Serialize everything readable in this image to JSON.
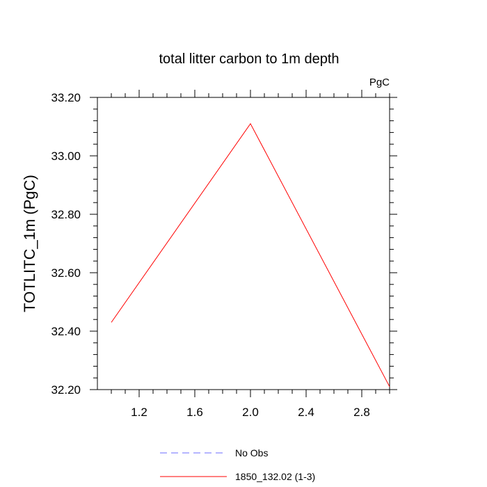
{
  "chart_data": {
    "type": "line",
    "title": "total litter carbon to 1m depth",
    "units_label": "PgC",
    "ylabel": "TOTLITC_1m  (PgC)",
    "xlabel": "",
    "xlim": [
      0.9,
      3.0
    ],
    "ylim": [
      32.2,
      33.2
    ],
    "x_ticks": [
      1.2,
      1.6,
      2.0,
      2.4,
      2.8
    ],
    "x_tick_labels": [
      "1.2",
      "1.6",
      "2.0",
      "2.4",
      "2.8"
    ],
    "x_minor_step": 0.1,
    "y_ticks": [
      32.2,
      32.4,
      32.6,
      32.8,
      33.0,
      33.2
    ],
    "y_tick_labels": [
      "32.20",
      "32.40",
      "32.60",
      "32.80",
      "33.00",
      "33.20"
    ],
    "y_minor_step": 0.04,
    "grid": false,
    "legend_position": "bottom",
    "series": [
      {
        "name": "1850_132.02 (1-3)",
        "color": "#ff0000",
        "dash": "solid",
        "x": [
          1.0,
          2.0,
          3.0
        ],
        "y": [
          32.43,
          33.11,
          32.21
        ]
      }
    ],
    "legend": [
      {
        "label": "No Obs",
        "color": "#6b6bff",
        "dash": "dashed"
      },
      {
        "label": "1850_132.02 (1-3)",
        "color": "#ff0000",
        "dash": "solid"
      }
    ]
  }
}
